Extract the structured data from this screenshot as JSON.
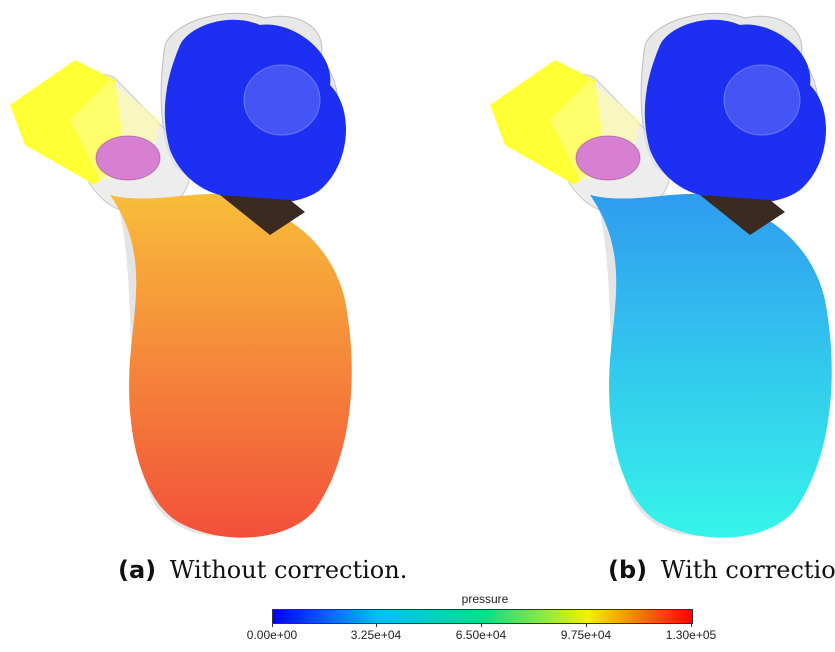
{
  "figure": {
    "panels": [
      {
        "tag": "(a)",
        "caption": "Without correction."
      },
      {
        "tag": "(b)",
        "caption": "With correction."
      }
    ]
  },
  "colorbar": {
    "title": "pressure",
    "ticks": [
      "0.00e+00",
      "3.25e+04",
      "6.50e+04",
      "9.75e+04",
      "1.30e+05"
    ],
    "range": [
      0,
      130000
    ],
    "colormap": [
      "#0000ff",
      "#00bfff",
      "#00e08a",
      "#f2f200",
      "#ff0000"
    ]
  },
  "colors": {
    "ventricle_a_top": "#f8bd3a",
    "ventricle_a_bottom": "#f2503a",
    "ventricle_b_top": "#2f9cf0",
    "ventricle_b_bottom": "#36f4ea",
    "atrium": "#1d2ff2",
    "outflow_tube": "#ffff33",
    "valve_mesh": "#d77fd0",
    "ghost_surface": "#cccccc"
  }
}
